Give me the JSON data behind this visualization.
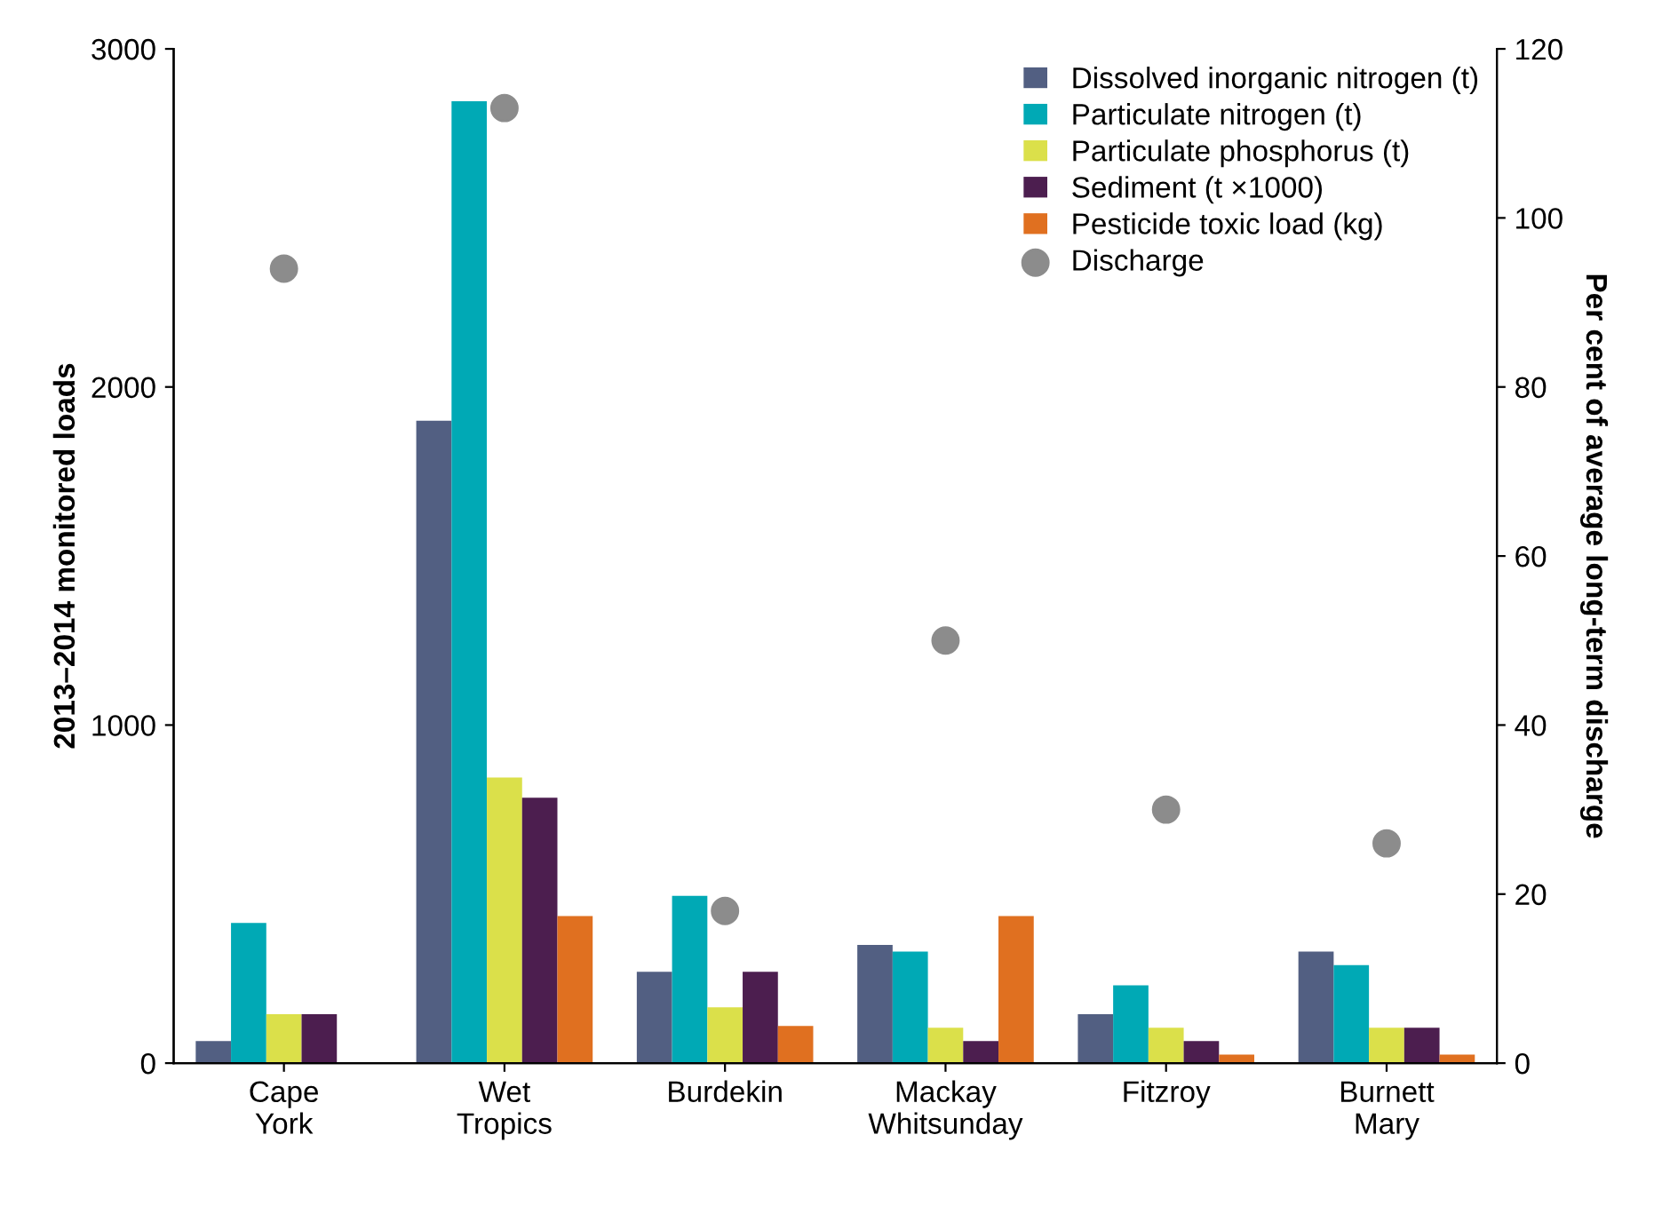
{
  "chart_data": {
    "type": "bar",
    "ylabel": "2013–2014 monitored loads",
    "y2label": "Per cent of average long-term discharge",
    "categories": [
      "Cape\nYork",
      "Wet\nTropics",
      "Burdekin",
      "Mackay\nWhitsunday",
      "Fitzroy",
      "Burnett\nMary"
    ],
    "series": [
      {
        "name": "Dissolved inorganic nitrogen (t)",
        "color": "#525f82",
        "values": [
          65,
          1900,
          270,
          350,
          145,
          330
        ]
      },
      {
        "name": "Particulate nitrogen (t)",
        "color": "#00a9b5",
        "values": [
          415,
          2845,
          495,
          330,
          230,
          290
        ]
      },
      {
        "name": "Particulate phosphorus (t)",
        "color": "#dbe04a",
        "values": [
          145,
          845,
          165,
          105,
          105,
          105
        ]
      },
      {
        "name": "Sediment (t ×1000)",
        "color": "#4c1e4f",
        "values": [
          145,
          785,
          270,
          65,
          65,
          105
        ]
      },
      {
        "name": "Pesticide toxic load (kg)",
        "color": "#e07020",
        "values": [
          0,
          435,
          110,
          435,
          25,
          25
        ]
      },
      {
        "name": "Discharge",
        "type": "scatter",
        "axis": "y2",
        "marker": "circle",
        "color": "#8c8c8c",
        "values": [
          94,
          113,
          18,
          50,
          30,
          26
        ]
      }
    ],
    "ylim": [
      0,
      3000
    ],
    "yticks": [
      0,
      1000,
      2000,
      3000
    ],
    "y2lim": [
      0,
      120
    ],
    "y2ticks": [
      0,
      20,
      40,
      60,
      80,
      100,
      120
    ],
    "grid": false,
    "legend": "top right"
  }
}
